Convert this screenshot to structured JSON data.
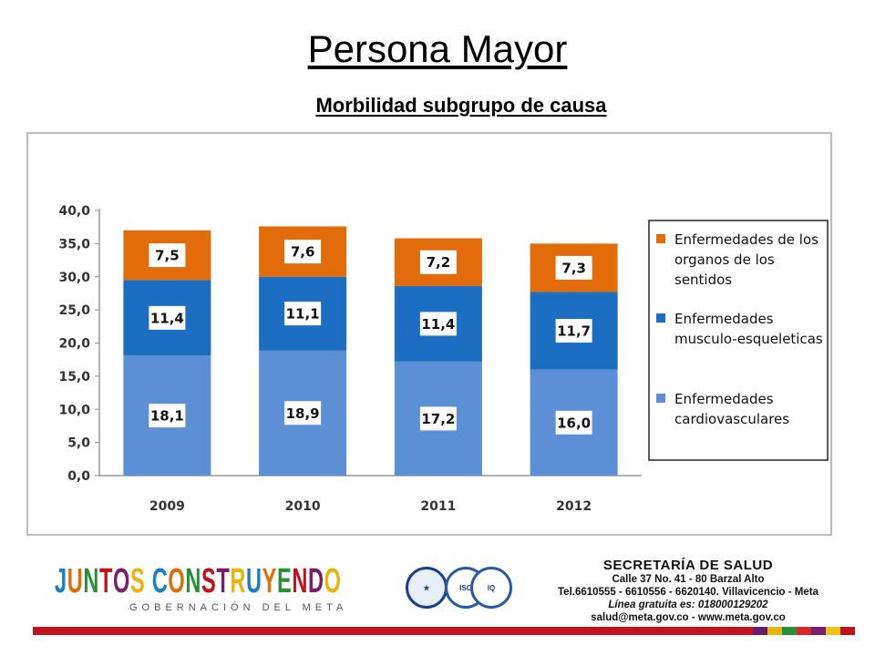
{
  "header": {
    "title": "Persona Mayor",
    "subtitle": "Morbilidad subgrupo de causa"
  },
  "chart_data": {
    "type": "bar",
    "stacked": true,
    "categories": [
      "2009",
      "2010",
      "2011",
      "2012"
    ],
    "series": [
      {
        "name": "Enfermedades cardiovasculares",
        "values": [
          18.1,
          18.9,
          17.2,
          16.0
        ],
        "labels": [
          "18,1",
          "18,9",
          "17,2",
          "16,0"
        ],
        "color": "#5b8fd6"
      },
      {
        "name": "Enfermedades musculo-esqueleticas",
        "values": [
          11.4,
          11.1,
          11.4,
          11.7
        ],
        "labels": [
          "11,4",
          "11,1",
          "11,4",
          "11,7"
        ],
        "color": "#1b6ec2"
      },
      {
        "name": "Enfermedades de los organos de los sentidos",
        "values": [
          7.5,
          7.6,
          7.2,
          7.3
        ],
        "labels": [
          "7,5",
          "7,6",
          "7,2",
          "7,3"
        ],
        "color": "#e36c0a"
      }
    ],
    "legend": [
      {
        "lines": [
          "Enfermedades de los",
          "organos de los",
          "sentidos"
        ],
        "color": "#e36c0a"
      },
      {
        "lines": [
          "Enfermedades",
          "musculo-esqueleticas"
        ],
        "color": "#1b6ec2"
      },
      {
        "lines": [
          "Enfermedades",
          "cardiovasculares"
        ],
        "color": "#5b8fd6"
      }
    ],
    "yticks": [
      "0,0",
      "5,0",
      "10,0",
      "15,0",
      "20,0",
      "25,0",
      "30,0",
      "35,0",
      "40,0"
    ],
    "ylim": [
      0,
      40
    ],
    "legend_position": "right",
    "grid": false
  },
  "footer": {
    "logo_text": "JUNTOS CONSTRUYENDO",
    "logo_subtext": "GOBERNACIÓN DEL META",
    "seals": [
      "GOBERNACIÓN DEL META seal",
      "ISO 9001 seal",
      "IQNet seal"
    ],
    "secretaria": "SECRETARÍA DE SALUD",
    "address": "Calle 37 No. 41 - 80 Barzal Alto",
    "phones": "Tel.6610555 - 6610556 - 6620140. Villavicencio - Meta",
    "hotline": "Línea gratuita es: 018000129202",
    "contact": "salud@meta.gov.co - www.meta.gov.co",
    "accent_colors": [
      "#c0141c",
      "#6a1b6e",
      "#e8b50c",
      "#2a8f3a",
      "#d9262c",
      "#7a1d6d",
      "#f0c020",
      "#c0141c"
    ]
  }
}
